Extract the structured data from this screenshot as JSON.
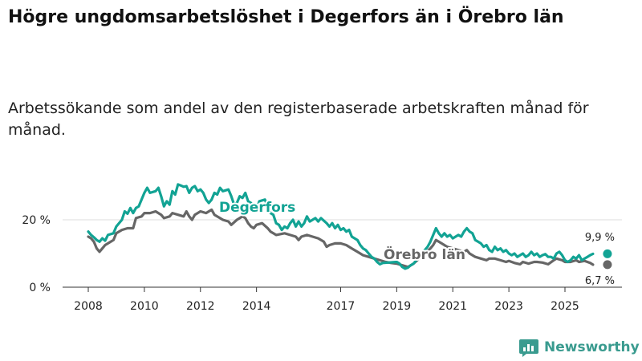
{
  "title": "Högre ungdomsarbetslöshet i Degerfors än i Örebro län",
  "subtitle": "Arbetssökande som andel av den registerbaserade arbetskraften månad för månad.",
  "brand": {
    "name": "Newsworthy"
  },
  "colors": {
    "degerfors": "#12a394",
    "orebro": "#666666",
    "grid": "#dddddd",
    "axis": "#333333",
    "brand": "#3a9b8f"
  },
  "chart_data": {
    "type": "line",
    "title": "Högre ungdomsarbetslöshet i Degerfors än i Örebro län",
    "xlabel": "",
    "ylabel": "",
    "xlim": [
      2008,
      2026.5
    ],
    "ylim": [
      0,
      32
    ],
    "yticks": [
      {
        "value": 0,
        "label": "0 %"
      },
      {
        "value": 20,
        "label": "20 %"
      }
    ],
    "xticks": [
      {
        "value": 2008,
        "label": "2008"
      },
      {
        "value": 2010,
        "label": "2010"
      },
      {
        "value": 2012,
        "label": "2012"
      },
      {
        "value": 2014,
        "label": "2014"
      },
      {
        "value": 2017,
        "label": "2017"
      },
      {
        "value": 2019,
        "label": "2019"
      },
      {
        "value": 2021,
        "label": "2021"
      },
      {
        "value": 2023,
        "label": "2023"
      },
      {
        "value": 2025,
        "label": "2025"
      }
    ],
    "series": [
      {
        "name": "Degerfors",
        "label": "Degerfors",
        "end_label": "9,9 %",
        "last_value": 9.9,
        "points": [
          [
            2008.0,
            16.5
          ],
          [
            2008.1,
            15.5
          ],
          [
            2008.2,
            14.8
          ],
          [
            2008.3,
            14.0
          ],
          [
            2008.4,
            13.5
          ],
          [
            2008.5,
            14.5
          ],
          [
            2008.6,
            13.8
          ],
          [
            2008.7,
            15.5
          ],
          [
            2008.9,
            16.0
          ],
          [
            2009.0,
            18.0
          ],
          [
            2009.2,
            20.0
          ],
          [
            2009.3,
            22.5
          ],
          [
            2009.4,
            21.8
          ],
          [
            2009.5,
            23.5
          ],
          [
            2009.6,
            22.0
          ],
          [
            2009.7,
            23.5
          ],
          [
            2009.8,
            24.0
          ],
          [
            2010.0,
            28.0
          ],
          [
            2010.1,
            29.5
          ],
          [
            2010.2,
            28.0
          ],
          [
            2010.4,
            28.5
          ],
          [
            2010.5,
            29.5
          ],
          [
            2010.6,
            27.0
          ],
          [
            2010.7,
            24.0
          ],
          [
            2010.8,
            25.5
          ],
          [
            2010.9,
            24.5
          ],
          [
            2011.0,
            28.5
          ],
          [
            2011.1,
            27.5
          ],
          [
            2011.2,
            30.5
          ],
          [
            2011.3,
            30.2
          ],
          [
            2011.4,
            29.8
          ],
          [
            2011.5,
            30.0
          ],
          [
            2011.6,
            28.0
          ],
          [
            2011.7,
            29.5
          ],
          [
            2011.8,
            30.0
          ],
          [
            2011.9,
            28.5
          ],
          [
            2012.0,
            29.0
          ],
          [
            2012.1,
            28.0
          ],
          [
            2012.2,
            26.0
          ],
          [
            2012.3,
            25.0
          ],
          [
            2012.4,
            26.0
          ],
          [
            2012.5,
            28.0
          ],
          [
            2012.6,
            27.5
          ],
          [
            2012.7,
            29.5
          ],
          [
            2012.8,
            28.5
          ],
          [
            2013.0,
            29.0
          ],
          [
            2013.1,
            27.0
          ],
          [
            2013.2,
            24.5
          ],
          [
            2013.3,
            25.0
          ],
          [
            2013.4,
            27.0
          ],
          [
            2013.5,
            26.5
          ],
          [
            2013.6,
            28.0
          ],
          [
            2013.7,
            25.5
          ],
          [
            2013.8,
            25.0
          ],
          [
            2013.9,
            24.0
          ],
          [
            2014.0,
            23.0
          ],
          [
            2014.1,
            25.5
          ],
          [
            2014.3,
            26.0
          ],
          [
            2014.4,
            24.0
          ],
          [
            2014.5,
            22.0
          ],
          [
            2014.6,
            21.5
          ],
          [
            2014.7,
            19.0
          ],
          [
            2014.8,
            18.5
          ],
          [
            2014.9,
            17.0
          ],
          [
            2015.0,
            18.0
          ],
          [
            2015.1,
            17.5
          ],
          [
            2015.2,
            19.0
          ],
          [
            2015.3,
            20.0
          ],
          [
            2015.4,
            18.0
          ],
          [
            2015.5,
            19.5
          ],
          [
            2015.6,
            18.0
          ],
          [
            2015.7,
            19.0
          ],
          [
            2015.8,
            21.0
          ],
          [
            2015.9,
            19.5
          ],
          [
            2016.0,
            20.0
          ],
          [
            2016.1,
            20.5
          ],
          [
            2016.2,
            19.5
          ],
          [
            2016.3,
            20.5
          ],
          [
            2016.5,
            19.0
          ],
          [
            2016.6,
            18.0
          ],
          [
            2016.7,
            19.0
          ],
          [
            2016.8,
            17.5
          ],
          [
            2016.9,
            18.5
          ],
          [
            2017.0,
            17.0
          ],
          [
            2017.1,
            17.5
          ],
          [
            2017.2,
            16.5
          ],
          [
            2017.3,
            17.0
          ],
          [
            2017.4,
            15.0
          ],
          [
            2017.5,
            14.5
          ],
          [
            2017.6,
            14.0
          ],
          [
            2017.7,
            12.5
          ],
          [
            2017.8,
            11.5
          ],
          [
            2017.9,
            11.0
          ],
          [
            2018.0,
            10.0
          ],
          [
            2018.1,
            9.0
          ],
          [
            2018.2,
            8.5
          ],
          [
            2018.3,
            7.5
          ],
          [
            2018.4,
            6.8
          ],
          [
            2018.5,
            7.2
          ],
          [
            2019.0,
            7.5
          ],
          [
            2019.1,
            7.0
          ],
          [
            2019.2,
            6.0
          ],
          [
            2019.3,
            5.5
          ],
          [
            2019.4,
            5.8
          ],
          [
            2019.5,
            6.5
          ],
          [
            2019.6,
            7.0
          ],
          [
            2019.7,
            8.0
          ],
          [
            2019.8,
            9.5
          ],
          [
            2019.9,
            10.0
          ],
          [
            2020.0,
            11.0
          ],
          [
            2020.1,
            12.0
          ],
          [
            2020.2,
            13.5
          ],
          [
            2020.3,
            15.5
          ],
          [
            2020.4,
            17.5
          ],
          [
            2020.5,
            16.0
          ],
          [
            2020.6,
            15.0
          ],
          [
            2020.7,
            16.0
          ],
          [
            2020.8,
            15.0
          ],
          [
            2020.9,
            15.5
          ],
          [
            2021.0,
            14.5
          ],
          [
            2021.1,
            15.0
          ],
          [
            2021.2,
            15.5
          ],
          [
            2021.3,
            15.0
          ],
          [
            2021.4,
            16.5
          ],
          [
            2021.5,
            17.5
          ],
          [
            2021.6,
            16.5
          ],
          [
            2021.7,
            16.0
          ],
          [
            2021.8,
            14.0
          ],
          [
            2021.9,
            13.5
          ],
          [
            2022.0,
            13.0
          ],
          [
            2022.1,
            12.0
          ],
          [
            2022.2,
            12.5
          ],
          [
            2022.3,
            11.0
          ],
          [
            2022.4,
            10.5
          ],
          [
            2022.5,
            12.0
          ],
          [
            2022.6,
            11.0
          ],
          [
            2022.7,
            11.5
          ],
          [
            2022.8,
            10.5
          ],
          [
            2022.9,
            11.0
          ],
          [
            2023.0,
            10.0
          ],
          [
            2023.1,
            9.5
          ],
          [
            2023.2,
            10.0
          ],
          [
            2023.3,
            9.0
          ],
          [
            2023.4,
            9.5
          ],
          [
            2023.5,
            10.0
          ],
          [
            2023.6,
            9.0
          ],
          [
            2023.7,
            9.5
          ],
          [
            2023.8,
            10.5
          ],
          [
            2023.9,
            9.5
          ],
          [
            2024.0,
            10.0
          ],
          [
            2024.1,
            9.0
          ],
          [
            2024.2,
            9.5
          ],
          [
            2024.3,
            9.8
          ],
          [
            2024.4,
            9.0
          ],
          [
            2024.5,
            9.0
          ],
          [
            2024.6,
            8.5
          ],
          [
            2024.7,
            10.0
          ],
          [
            2024.8,
            10.5
          ],
          [
            2024.9,
            9.5
          ],
          [
            2025.0,
            8.0
          ],
          [
            2025.1,
            7.5
          ],
          [
            2025.2,
            8.0
          ],
          [
            2025.3,
            9.0
          ],
          [
            2025.4,
            8.5
          ],
          [
            2025.5,
            9.5
          ],
          [
            2025.6,
            8.0
          ],
          [
            2025.7,
            8.5
          ],
          [
            2025.8,
            9.0
          ],
          [
            2025.9,
            9.5
          ],
          [
            2026.0,
            9.9
          ]
        ]
      },
      {
        "name": "Örebro län",
        "label": "Örebro län",
        "end_label": "6,7 %",
        "last_value": 6.7,
        "points": [
          [
            2008.0,
            15.0
          ],
          [
            2008.1,
            14.5
          ],
          [
            2008.2,
            13.5
          ],
          [
            2008.3,
            11.5
          ],
          [
            2008.4,
            10.5
          ],
          [
            2008.5,
            11.5
          ],
          [
            2008.6,
            12.5
          ],
          [
            2008.7,
            13.0
          ],
          [
            2008.8,
            13.5
          ],
          [
            2008.9,
            14.0
          ],
          [
            2009.0,
            16.0
          ],
          [
            2009.2,
            17.0
          ],
          [
            2009.4,
            17.5
          ],
          [
            2009.6,
            17.5
          ],
          [
            2009.7,
            20.5
          ],
          [
            2009.9,
            21.0
          ],
          [
            2010.0,
            22.0
          ],
          [
            2010.2,
            22.0
          ],
          [
            2010.4,
            22.5
          ],
          [
            2010.6,
            21.5
          ],
          [
            2010.7,
            20.5
          ],
          [
            2010.9,
            21.0
          ],
          [
            2011.0,
            22.0
          ],
          [
            2011.2,
            21.5
          ],
          [
            2011.4,
            21.0
          ],
          [
            2011.5,
            22.5
          ],
          [
            2011.6,
            21.0
          ],
          [
            2011.7,
            20.0
          ],
          [
            2011.8,
            21.5
          ],
          [
            2012.0,
            22.5
          ],
          [
            2012.2,
            22.0
          ],
          [
            2012.4,
            23.0
          ],
          [
            2012.5,
            21.5
          ],
          [
            2012.7,
            20.5
          ],
          [
            2012.8,
            20.0
          ],
          [
            2013.0,
            19.5
          ],
          [
            2013.1,
            18.5
          ],
          [
            2013.3,
            20.0
          ],
          [
            2013.5,
            21.0
          ],
          [
            2013.6,
            20.5
          ],
          [
            2013.7,
            19.0
          ],
          [
            2013.8,
            18.0
          ],
          [
            2013.9,
            17.5
          ],
          [
            2014.0,
            18.5
          ],
          [
            2014.2,
            19.0
          ],
          [
            2014.4,
            17.5
          ],
          [
            2014.5,
            16.5
          ],
          [
            2014.6,
            16.0
          ],
          [
            2014.7,
            15.5
          ],
          [
            2015.0,
            16.0
          ],
          [
            2015.2,
            15.5
          ],
          [
            2015.4,
            15.0
          ],
          [
            2015.5,
            14.0
          ],
          [
            2015.6,
            15.0
          ],
          [
            2015.8,
            15.5
          ],
          [
            2016.0,
            15.0
          ],
          [
            2016.2,
            14.5
          ],
          [
            2016.4,
            13.5
          ],
          [
            2016.5,
            12.0
          ],
          [
            2016.6,
            12.5
          ],
          [
            2016.8,
            13.0
          ],
          [
            2017.0,
            13.0
          ],
          [
            2017.2,
            12.5
          ],
          [
            2017.4,
            11.5
          ],
          [
            2017.6,
            10.5
          ],
          [
            2017.8,
            9.5
          ],
          [
            2018.0,
            9.0
          ],
          [
            2018.2,
            8.5
          ],
          [
            2018.4,
            8.0
          ],
          [
            2018.6,
            7.5
          ],
          [
            2018.8,
            7.2
          ],
          [
            2019.0,
            7.0
          ],
          [
            2019.2,
            6.5
          ],
          [
            2019.4,
            6.0
          ],
          [
            2019.5,
            6.5
          ],
          [
            2019.6,
            7.0
          ],
          [
            2019.8,
            8.5
          ],
          [
            2020.0,
            10.0
          ],
          [
            2020.2,
            11.5
          ],
          [
            2020.3,
            12.5
          ],
          [
            2020.4,
            14.0
          ],
          [
            2020.5,
            13.5
          ],
          [
            2020.6,
            13.0
          ],
          [
            2020.8,
            12.0
          ],
          [
            2021.0,
            11.5
          ],
          [
            2021.2,
            11.0
          ],
          [
            2021.4,
            10.5
          ],
          [
            2021.5,
            11.0
          ],
          [
            2021.6,
            10.0
          ],
          [
            2021.8,
            9.0
          ],
          [
            2022.0,
            8.5
          ],
          [
            2022.2,
            8.0
          ],
          [
            2022.3,
            8.5
          ],
          [
            2022.5,
            8.5
          ],
          [
            2022.7,
            8.0
          ],
          [
            2022.9,
            7.5
          ],
          [
            2023.0,
            7.8
          ],
          [
            2023.2,
            7.2
          ],
          [
            2023.4,
            6.8
          ],
          [
            2023.5,
            7.5
          ],
          [
            2023.7,
            7.0
          ],
          [
            2023.9,
            7.5
          ],
          [
            2024.0,
            7.5
          ],
          [
            2024.2,
            7.3
          ],
          [
            2024.4,
            6.8
          ],
          [
            2024.6,
            8.0
          ],
          [
            2024.7,
            8.5
          ],
          [
            2024.9,
            8.0
          ],
          [
            2025.0,
            7.5
          ],
          [
            2025.2,
            7.5
          ],
          [
            2025.4,
            8.0
          ],
          [
            2025.5,
            7.5
          ],
          [
            2025.7,
            7.8
          ],
          [
            2025.9,
            7.2
          ],
          [
            2026.0,
            6.7
          ]
        ]
      }
    ]
  }
}
